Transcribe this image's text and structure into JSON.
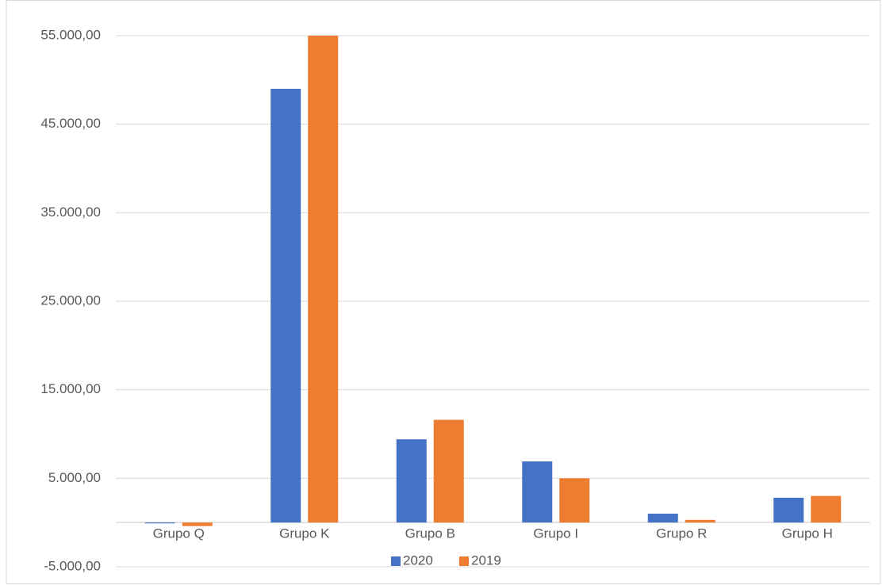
{
  "chart_data": {
    "type": "bar",
    "categories": [
      "Grupo Q",
      "Grupo K",
      "Grupo B",
      "Grupo I",
      "Grupo R",
      "Grupo H"
    ],
    "series": [
      {
        "name": "2020",
        "color": "#4472c4",
        "values": [
          -100,
          49000,
          9400,
          6900,
          1000,
          2800
        ]
      },
      {
        "name": "2019",
        "color": "#ed7d31",
        "values": [
          -400,
          55000,
          11600,
          5000,
          300,
          3000
        ]
      }
    ],
    "ylim": [
      -5000,
      55000
    ],
    "yticks": [
      {
        "value": -5000,
        "label": "-5.000,00"
      },
      {
        "value": 5000,
        "label": "5.000,00"
      },
      {
        "value": 15000,
        "label": "15.000,00"
      },
      {
        "value": 25000,
        "label": "25.000,00"
      },
      {
        "value": 35000,
        "label": "35.000,00"
      },
      {
        "value": 45000,
        "label": "45.000,00"
      },
      {
        "value": 55000,
        "label": "55.000,00"
      }
    ],
    "grid": true,
    "legend": "bottom"
  }
}
